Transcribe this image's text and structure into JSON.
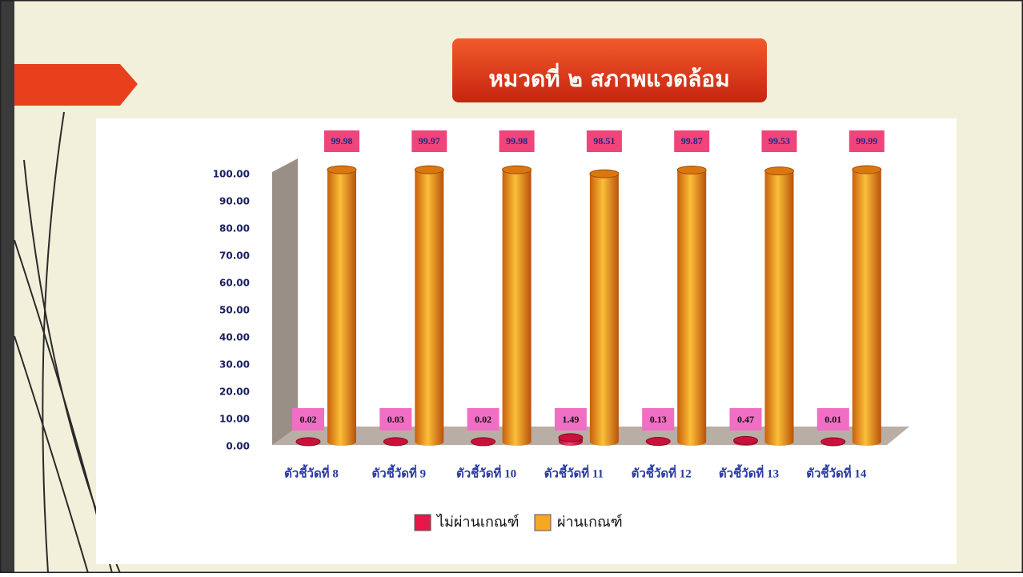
{
  "chart_data": {
    "type": "bar",
    "title": "หมวดที่ ๒ สภาพแวดล้อม",
    "categories": [
      "ตัวชี้วัดที่ 8",
      "ตัวชี้วัดที่ 9",
      "ตัวชี้วัดที่ 10",
      "ตัวชี้วัดที่ 11",
      "ตัวชี้วัดที่ 12",
      "ตัวชี้วัดที่ 13",
      "ตัวชี้วัดที่ 14"
    ],
    "series": [
      {
        "name": "ไม่ผ่านเกณฑ์",
        "color": "#e8174a",
        "values": [
          0.02,
          0.03,
          0.02,
          1.49,
          0.13,
          0.47,
          0.01
        ]
      },
      {
        "name": "ผ่านเกณฑ์",
        "color": "#f7a823",
        "values": [
          99.98,
          99.97,
          99.98,
          98.51,
          99.87,
          99.53,
          99.99
        ]
      }
    ],
    "ylim": [
      0,
      100
    ],
    "yticks": [
      {
        "value": 0,
        "label": "0.00"
      },
      {
        "value": 10,
        "label": "10.00"
      },
      {
        "value": 20,
        "label": "20.00"
      },
      {
        "value": 30,
        "label": "30.00"
      },
      {
        "value": 40,
        "label": "40.00"
      },
      {
        "value": 50,
        "label": "50.00"
      },
      {
        "value": 60,
        "label": "60.00"
      },
      {
        "value": 70,
        "label": "70.00"
      },
      {
        "value": 80,
        "label": "80.00"
      },
      {
        "value": 90,
        "label": "90.00"
      },
      {
        "value": 100,
        "label": "100.00"
      }
    ],
    "legend": "bottom"
  }
}
